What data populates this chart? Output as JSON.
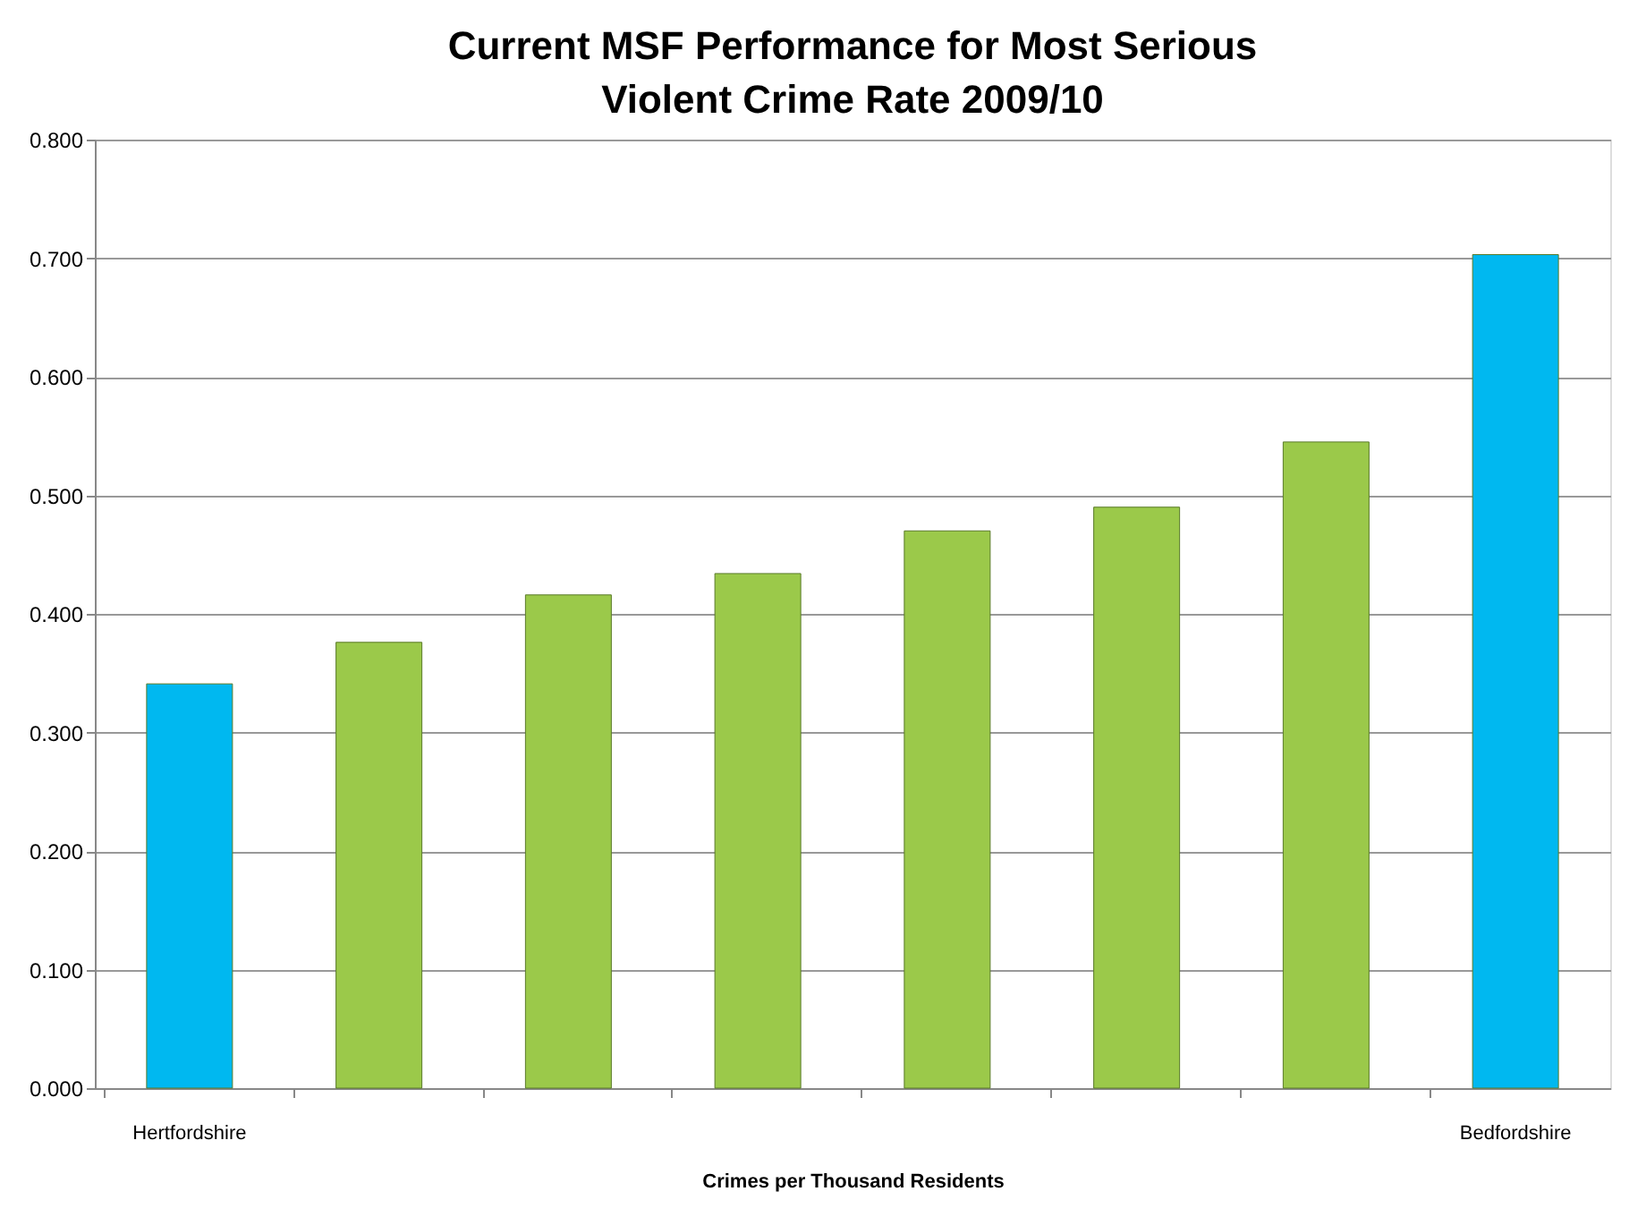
{
  "chart_data": {
    "type": "bar",
    "title": "Current MSF Performance for Most Serious Violent Crime Rate 2009/10",
    "xlabel": "Crimes per Thousand  Residents",
    "categories": [
      "Hertfordshire",
      null,
      null,
      null,
      null,
      null,
      null,
      "Bedfordshire"
    ],
    "values": [
      0.341,
      0.376,
      0.416,
      0.434,
      0.47,
      0.49,
      0.545,
      0.703
    ],
    "colors": [
      "#00b8f0",
      "#9bc94a",
      "#9bc94a",
      "#9bc94a",
      "#9bc94a",
      "#9bc94a",
      "#9bc94a",
      "#00b8f0"
    ],
    "ylim": [
      0,
      0.8
    ],
    "yticks": [
      {
        "value": 0,
        "label": "0.000"
      },
      {
        "value": 0.1,
        "label": "0.100"
      },
      {
        "value": 0.2,
        "label": "0.200"
      },
      {
        "value": 0.3,
        "label": "0.300"
      },
      {
        "value": 0.4,
        "label": "0.400"
      },
      {
        "value": 0.5,
        "label": "0.500"
      },
      {
        "value": 0.6,
        "label": "0.600"
      },
      {
        "value": 0.7,
        "label": "0.700"
      },
      {
        "value": 0.8,
        "label": "0.800"
      }
    ],
    "grid": "y",
    "legend": false
  }
}
